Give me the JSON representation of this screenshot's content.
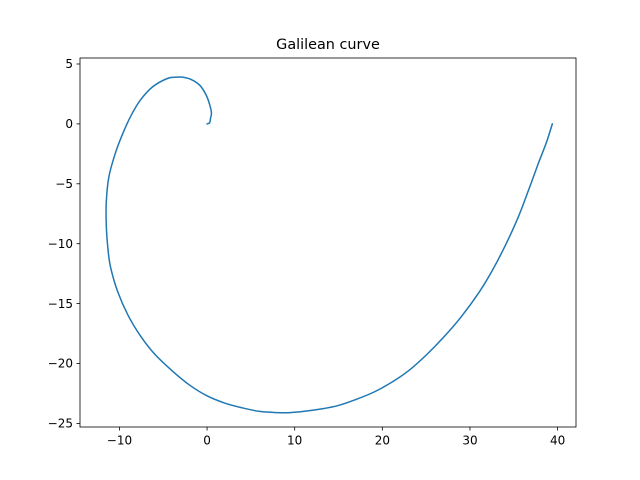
{
  "chart_data": {
    "type": "line",
    "title": "Galilean curve",
    "xlabel": "",
    "ylabel": "",
    "xlim": [
      -14.5,
      42.1
    ],
    "ylim": [
      -25.3,
      5.5
    ],
    "grid": false,
    "legend": "none",
    "x_ticks": [
      -10,
      0,
      10,
      20,
      30,
      40
    ],
    "y_ticks": [
      5,
      0,
      -5,
      -10,
      -15,
      -20,
      -25
    ],
    "series": [
      {
        "color": "#1f77b4",
        "points": [
          [
            0.0,
            0.0
          ],
          [
            0.3,
            0.1
          ],
          [
            0.4,
            0.5
          ],
          [
            0.5,
            0.9
          ],
          [
            0.3,
            1.6
          ],
          [
            -0.1,
            2.4
          ],
          [
            -0.8,
            3.2
          ],
          [
            -1.8,
            3.7
          ],
          [
            -2.8,
            3.9
          ],
          [
            -3.5,
            3.9
          ],
          [
            -4.5,
            3.8
          ],
          [
            -6.2,
            3.1
          ],
          [
            -7.6,
            2.0
          ],
          [
            -8.6,
            0.8
          ],
          [
            -9.5,
            -0.6
          ],
          [
            -10.4,
            -2.3
          ],
          [
            -11.2,
            -4.4
          ],
          [
            -11.5,
            -6.5
          ],
          [
            -11.5,
            -8.5
          ],
          [
            -11.3,
            -10.5
          ],
          [
            -11.0,
            -12.0
          ],
          [
            -10.2,
            -14.0
          ],
          [
            -9.0,
            -16.0
          ],
          [
            -7.6,
            -17.7
          ],
          [
            -6.0,
            -19.2
          ],
          [
            -4.0,
            -20.6
          ],
          [
            -2.0,
            -21.8
          ],
          [
            0.0,
            -22.7
          ],
          [
            2.0,
            -23.3
          ],
          [
            4.0,
            -23.7
          ],
          [
            6.0,
            -24.0
          ],
          [
            8.0,
            -24.1
          ],
          [
            9.5,
            -24.1
          ],
          [
            11.0,
            -24.0
          ],
          [
            13.0,
            -23.8
          ],
          [
            15.0,
            -23.5
          ],
          [
            17.0,
            -23.0
          ],
          [
            19.0,
            -22.4
          ],
          [
            21.0,
            -21.6
          ],
          [
            23.0,
            -20.6
          ],
          [
            25.0,
            -19.3
          ],
          [
            27.0,
            -17.8
          ],
          [
            29.0,
            -16.1
          ],
          [
            31.0,
            -14.1
          ],
          [
            32.5,
            -12.3
          ],
          [
            34.0,
            -10.2
          ],
          [
            35.5,
            -7.8
          ],
          [
            36.7,
            -5.5
          ],
          [
            37.8,
            -3.3
          ],
          [
            38.7,
            -1.6
          ],
          [
            39.4,
            0.0
          ]
        ]
      }
    ]
  }
}
